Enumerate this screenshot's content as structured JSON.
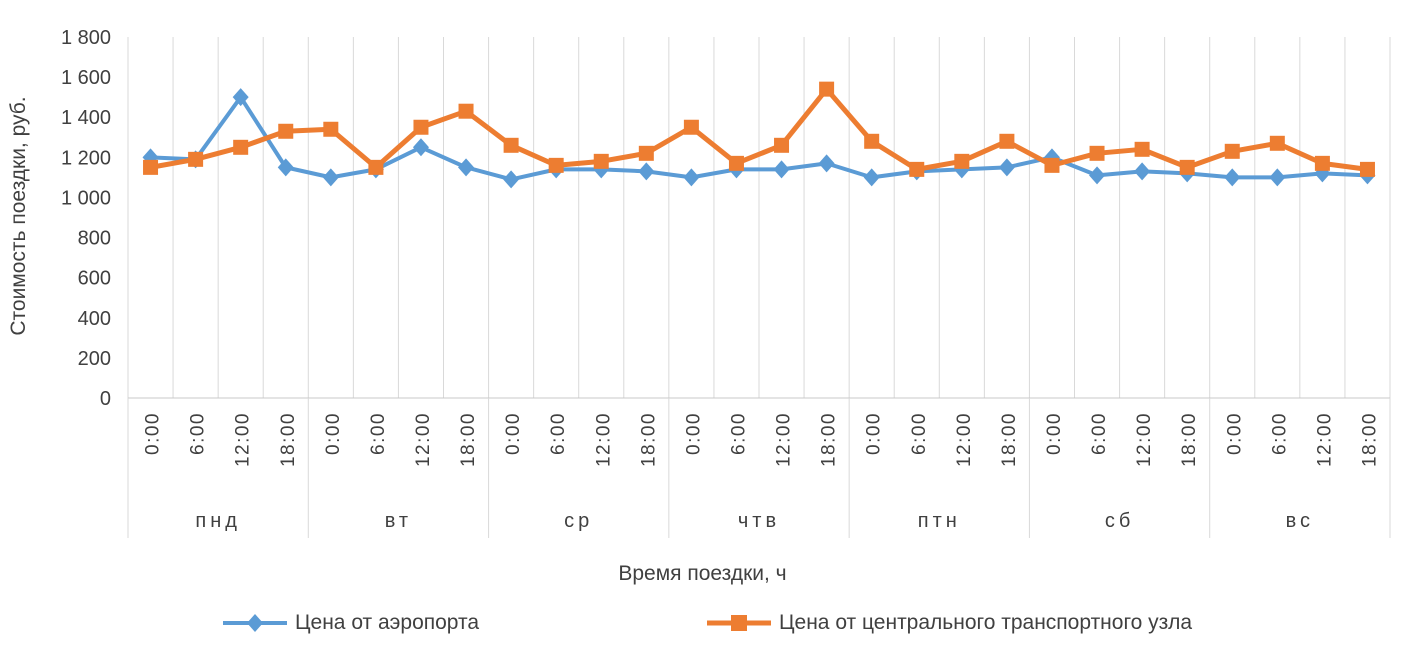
{
  "chart_data": {
    "type": "line",
    "title": "",
    "ylabel": "Стоимость поездки, руб.",
    "xlabel": "Время поездки, ч",
    "ylim": [
      0,
      1800
    ],
    "ytick_step": 200,
    "ytick_labels": [
      "0",
      "200",
      "400",
      "600",
      "800",
      "1 000",
      "1 200",
      "1 400",
      "1 600",
      "1 800"
    ],
    "day_groups": [
      "пнд",
      "вт",
      "ср",
      "чтв",
      "птн",
      "сб",
      "вс"
    ],
    "times_per_day": [
      "0:00",
      "6:00",
      "12:00",
      "18:00"
    ],
    "categories": [
      "0:00",
      "6:00",
      "12:00",
      "18:00",
      "0:00",
      "6:00",
      "12:00",
      "18:00",
      "0:00",
      "6:00",
      "12:00",
      "18:00",
      "0:00",
      "6:00",
      "12:00",
      "18:00",
      "0:00",
      "6:00",
      "12:00",
      "18:00",
      "0:00",
      "6:00",
      "12:00",
      "18:00",
      "0:00",
      "6:00",
      "12:00",
      "18:00"
    ],
    "grid": "vertical-category-gridlines-only",
    "legend_position": "bottom",
    "series": [
      {
        "name": "Цена от аэропорта",
        "color": "#5B9BD5",
        "marker": "diamond",
        "values": [
          1200,
          1190,
          1500,
          1150,
          1100,
          1140,
          1250,
          1150,
          1090,
          1140,
          1140,
          1130,
          1100,
          1140,
          1140,
          1170,
          1100,
          1130,
          1140,
          1150,
          1200,
          1110,
          1130,
          1120,
          1100,
          1100,
          1120,
          1110
        ]
      },
      {
        "name": "Цена от центрального транспортного узла",
        "color": "#ED7D31",
        "marker": "square",
        "values": [
          1150,
          1190,
          1250,
          1330,
          1340,
          1150,
          1350,
          1430,
          1260,
          1160,
          1180,
          1220,
          1350,
          1170,
          1260,
          1540,
          1280,
          1140,
          1180,
          1280,
          1160,
          1220,
          1240,
          1150,
          1230,
          1270,
          1170,
          1140
        ]
      }
    ],
    "colors": {
      "gridline": "#D9D9D9",
      "axis_line": "#C8C8C8",
      "text": "#404040"
    }
  }
}
